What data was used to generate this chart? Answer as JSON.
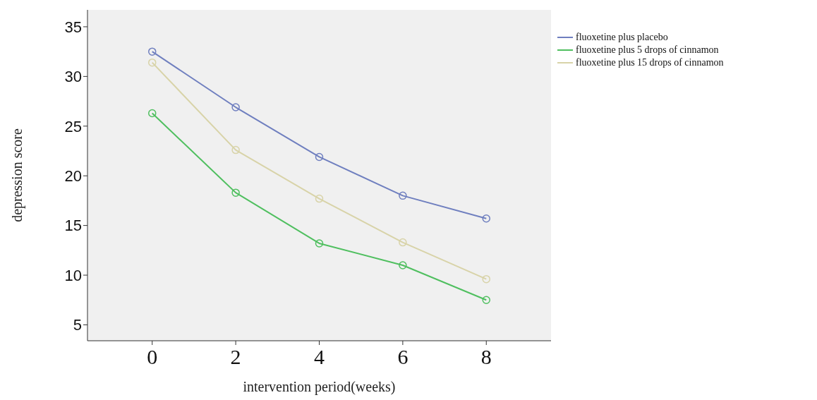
{
  "chart_data": {
    "type": "line",
    "xlabel": "intervention period(weeks)",
    "ylabel": "depression score",
    "x": [
      0,
      2,
      4,
      6,
      8
    ],
    "series": [
      {
        "name": "fluoxetine plus placebo",
        "color": "#6f7fbf",
        "values": [
          32.5,
          26.9,
          21.9,
          18.0,
          15.7
        ]
      },
      {
        "name": "fluoxetine plus 5 drops of cinnamon",
        "color": "#4fbf5f",
        "values": [
          26.3,
          18.3,
          13.2,
          11.0,
          7.5
        ]
      },
      {
        "name": "fluoxetine plus 15 drops of cinnamon",
        "color": "#d8d3a8",
        "values": [
          31.4,
          22.6,
          17.7,
          13.3,
          9.6
        ]
      }
    ],
    "xlim": [
      -1.55,
      9.55
    ],
    "xticks": [
      0,
      2,
      4,
      6,
      8
    ],
    "ylim": [
      3.4,
      36.7
    ],
    "yticks": [
      5,
      10,
      15,
      20,
      25,
      30,
      35
    ],
    "grid": false,
    "legend": "top right",
    "marker": "circle",
    "line_style": "solid"
  }
}
